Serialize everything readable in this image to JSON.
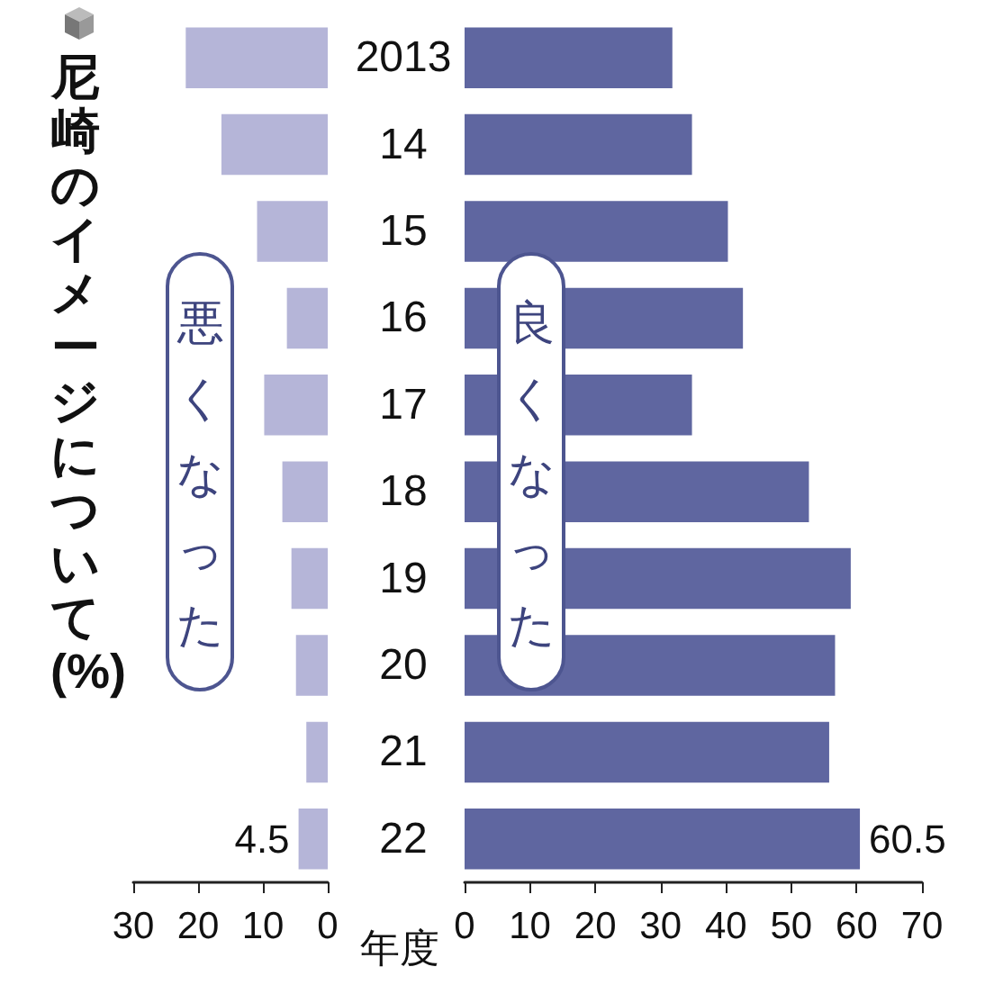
{
  "chart_data": [
    {
      "type": "bar",
      "orientation": "horizontal",
      "title": "尼崎のイメージについて(%)",
      "annotations": [
        "悪くなった"
      ],
      "categories": [
        "2013",
        "14",
        "15",
        "16",
        "17",
        "18",
        "19",
        "20",
        "21",
        "22"
      ],
      "values": [
        21.9,
        16.4,
        10.9,
        6.3,
        9.8,
        7.0,
        5.6,
        4.9,
        3.3,
        4.5
      ],
      "color": "#b5b5d8",
      "xlim": [
        30,
        0
      ],
      "xticks": [
        30,
        20,
        10,
        0
      ],
      "tick_labels": "x",
      "value_labels": [
        null,
        null,
        null,
        null,
        null,
        null,
        null,
        null,
        null,
        "4.5"
      ]
    },
    {
      "type": "bar",
      "orientation": "horizontal",
      "ylabel": "年度",
      "annotations": [
        "良くなった"
      ],
      "categories": [
        "2013",
        "14",
        "15",
        "16",
        "17",
        "18",
        "19",
        "20",
        "21",
        "22"
      ],
      "values": [
        31.8,
        34.8,
        40.3,
        42.6,
        34.8,
        52.7,
        59.1,
        56.7,
        55.8,
        60.5
      ],
      "color": "#5f66a0",
      "xlim": [
        0,
        70
      ],
      "xticks": [
        0,
        10,
        20,
        30,
        40,
        50,
        60,
        70
      ],
      "value_labels": [
        null,
        null,
        null,
        null,
        null,
        null,
        null,
        null,
        null,
        "60.5"
      ]
    }
  ]
}
